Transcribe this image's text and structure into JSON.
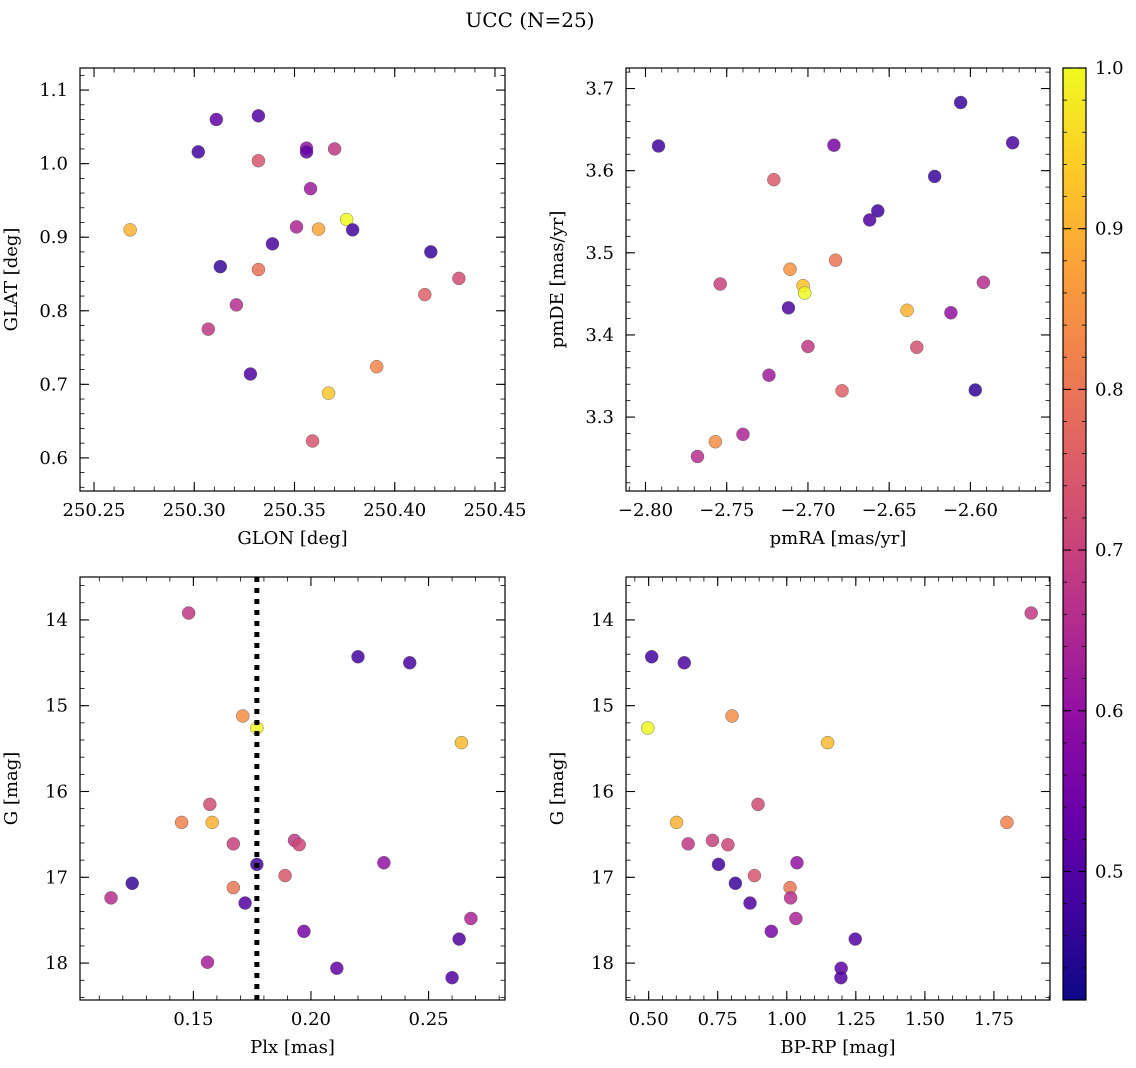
{
  "figure": {
    "title": "UCC (N=25)"
  },
  "colorbar": {
    "colormap": "plasma",
    "range": [
      0.42,
      1.0
    ],
    "ticks": [
      "0.5",
      "0.6",
      "0.7",
      "0.8",
      "0.9",
      "1.0"
    ],
    "tick_values": [
      0.5,
      0.6,
      0.7,
      0.8,
      0.9,
      1.0
    ]
  },
  "chart_data": [
    {
      "type": "scatter",
      "id": "glon-glat",
      "xlabel": "GLON [deg]",
      "ylabel": "GLAT [deg]",
      "xlim": [
        250.243,
        250.455
      ],
      "ylim": [
        0.555,
        1.13
      ],
      "xticks": [
        250.25,
        250.3,
        250.35,
        250.4,
        250.45
      ],
      "xtick_labels": [
        "250.25",
        "250.30",
        "250.35",
        "250.40",
        "250.45"
      ],
      "yticks": [
        0.6,
        0.7,
        0.8,
        0.9,
        1.0,
        1.1
      ],
      "ytick_labels": [
        "0.6",
        "0.7",
        "0.8",
        "0.9",
        "1.0",
        "1.1"
      ],
      "points": [
        {
          "x": 250.268,
          "y": 0.91,
          "c": 0.9
        },
        {
          "x": 250.302,
          "y": 1.016,
          "c": 0.48
        },
        {
          "x": 250.311,
          "y": 1.06,
          "c": 0.52
        },
        {
          "x": 250.313,
          "y": 0.86,
          "c": 0.47
        },
        {
          "x": 250.307,
          "y": 0.775,
          "c": 0.68
        },
        {
          "x": 250.321,
          "y": 0.808,
          "c": 0.66
        },
        {
          "x": 250.328,
          "y": 0.714,
          "c": 0.5
        },
        {
          "x": 250.332,
          "y": 1.065,
          "c": 0.51
        },
        {
          "x": 250.332,
          "y": 1.004,
          "c": 0.74
        },
        {
          "x": 250.332,
          "y": 0.856,
          "c": 0.79
        },
        {
          "x": 250.339,
          "y": 0.891,
          "c": 0.49
        },
        {
          "x": 250.351,
          "y": 0.914,
          "c": 0.64
        },
        {
          "x": 250.356,
          "y": 1.021,
          "c": 0.6
        },
        {
          "x": 250.356,
          "y": 1.016,
          "c": 0.52
        },
        {
          "x": 250.358,
          "y": 0.966,
          "c": 0.62
        },
        {
          "x": 250.359,
          "y": 0.623,
          "c": 0.74
        },
        {
          "x": 250.362,
          "y": 0.911,
          "c": 0.88
        },
        {
          "x": 250.367,
          "y": 0.688,
          "c": 0.93
        },
        {
          "x": 250.37,
          "y": 1.02,
          "c": 0.68
        },
        {
          "x": 250.376,
          "y": 0.924,
          "c": 1.0
        },
        {
          "x": 250.379,
          "y": 0.91,
          "c": 0.48
        },
        {
          "x": 250.391,
          "y": 0.724,
          "c": 0.83
        },
        {
          "x": 250.415,
          "y": 0.822,
          "c": 0.76
        },
        {
          "x": 250.418,
          "y": 0.88,
          "c": 0.47
        },
        {
          "x": 250.432,
          "y": 0.844,
          "c": 0.72
        }
      ]
    },
    {
      "type": "scatter",
      "id": "pmra-pmde",
      "xlabel": "pmRA [mas/yr]",
      "ylabel": "pmDE [mas/yr]",
      "xlim": [
        -2.812,
        -2.551
      ],
      "ylim": [
        3.21,
        3.725
      ],
      "xticks": [
        -2.8,
        -2.75,
        -2.7,
        -2.65,
        -2.6
      ],
      "xtick_labels": [
        "−2.80",
        "−2.75",
        "−2.70",
        "−2.65",
        "−2.60"
      ],
      "yticks": [
        3.3,
        3.4,
        3.5,
        3.6,
        3.7
      ],
      "ytick_labels": [
        "3.3",
        "3.4",
        "3.5",
        "3.6",
        "3.7"
      ],
      "points": [
        {
          "x": -2.792,
          "y": 3.63,
          "c": 0.48
        },
        {
          "x": -2.768,
          "y": 3.252,
          "c": 0.66
        },
        {
          "x": -2.757,
          "y": 3.27,
          "c": 0.84
        },
        {
          "x": -2.754,
          "y": 3.462,
          "c": 0.7
        },
        {
          "x": -2.74,
          "y": 3.279,
          "c": 0.64
        },
        {
          "x": -2.724,
          "y": 3.351,
          "c": 0.62
        },
        {
          "x": -2.721,
          "y": 3.589,
          "c": 0.75
        },
        {
          "x": -2.712,
          "y": 3.433,
          "c": 0.5
        },
        {
          "x": -2.711,
          "y": 3.48,
          "c": 0.85
        },
        {
          "x": -2.703,
          "y": 3.46,
          "c": 0.92
        },
        {
          "x": -2.702,
          "y": 3.451,
          "c": 1.0
        },
        {
          "x": -2.7,
          "y": 3.386,
          "c": 0.68
        },
        {
          "x": -2.684,
          "y": 3.631,
          "c": 0.56
        },
        {
          "x": -2.683,
          "y": 3.491,
          "c": 0.8
        },
        {
          "x": -2.679,
          "y": 3.332,
          "c": 0.76
        },
        {
          "x": -2.662,
          "y": 3.54,
          "c": 0.5
        },
        {
          "x": -2.657,
          "y": 3.551,
          "c": 0.48
        },
        {
          "x": -2.639,
          "y": 3.43,
          "c": 0.9
        },
        {
          "x": -2.633,
          "y": 3.385,
          "c": 0.73
        },
        {
          "x": -2.622,
          "y": 3.593,
          "c": 0.47
        },
        {
          "x": -2.612,
          "y": 3.427,
          "c": 0.6
        },
        {
          "x": -2.606,
          "y": 3.683,
          "c": 0.47
        },
        {
          "x": -2.597,
          "y": 3.333,
          "c": 0.46
        },
        {
          "x": -2.592,
          "y": 3.464,
          "c": 0.66
        },
        {
          "x": -2.574,
          "y": 3.634,
          "c": 0.49
        }
      ]
    },
    {
      "type": "scatter",
      "id": "plx-g",
      "xlabel": "Plx [mas]",
      "ylabel": "G [mag]",
      "xlim": [
        0.1018,
        0.2825
      ],
      "ylim": [
        18.43,
        13.5
      ],
      "y_inverted": true,
      "xticks": [
        0.15,
        0.2,
        0.25
      ],
      "xtick_labels": [
        "0.15",
        "0.20",
        "0.25"
      ],
      "yticks": [
        14,
        15,
        16,
        17,
        18
      ],
      "ytick_labels": [
        "14",
        "15",
        "16",
        "17",
        "18"
      ],
      "vline": {
        "x": 0.177,
        "style": "dotted"
      },
      "points": [
        {
          "x": 0.148,
          "y": 13.92,
          "c": 0.68
        },
        {
          "x": 0.22,
          "y": 14.43,
          "c": 0.48
        },
        {
          "x": 0.242,
          "y": 14.5,
          "c": 0.49
        },
        {
          "x": 0.171,
          "y": 15.12,
          "c": 0.84
        },
        {
          "x": 0.177,
          "y": 15.26,
          "c": 1.0
        },
        {
          "x": 0.264,
          "y": 15.43,
          "c": 0.91
        },
        {
          "x": 0.157,
          "y": 16.15,
          "c": 0.72
        },
        {
          "x": 0.145,
          "y": 16.36,
          "c": 0.82
        },
        {
          "x": 0.158,
          "y": 16.36,
          "c": 0.9
        },
        {
          "x": 0.167,
          "y": 16.61,
          "c": 0.7
        },
        {
          "x": 0.193,
          "y": 16.57,
          "c": 0.68
        },
        {
          "x": 0.195,
          "y": 16.62,
          "c": 0.71
        },
        {
          "x": 0.231,
          "y": 16.83,
          "c": 0.6
        },
        {
          "x": 0.177,
          "y": 16.85,
          "c": 0.48
        },
        {
          "x": 0.189,
          "y": 16.98,
          "c": 0.74
        },
        {
          "x": 0.124,
          "y": 17.07,
          "c": 0.47
        },
        {
          "x": 0.167,
          "y": 17.12,
          "c": 0.8
        },
        {
          "x": 0.115,
          "y": 17.24,
          "c": 0.66
        },
        {
          "x": 0.172,
          "y": 17.3,
          "c": 0.5
        },
        {
          "x": 0.268,
          "y": 17.48,
          "c": 0.64
        },
        {
          "x": 0.197,
          "y": 17.63,
          "c": 0.56
        },
        {
          "x": 0.263,
          "y": 17.72,
          "c": 0.5
        },
        {
          "x": 0.156,
          "y": 17.99,
          "c": 0.63
        },
        {
          "x": 0.211,
          "y": 18.06,
          "c": 0.52
        },
        {
          "x": 0.26,
          "y": 18.17,
          "c": 0.5
        }
      ]
    },
    {
      "type": "scatter",
      "id": "bprp-g",
      "xlabel": "BP-RP [mag]",
      "ylabel": "G [mag]",
      "xlim": [
        0.418,
        1.953
      ],
      "ylim": [
        18.43,
        13.5
      ],
      "y_inverted": true,
      "xticks": [
        0.5,
        0.75,
        1.0,
        1.25,
        1.5,
        1.75
      ],
      "xtick_labels": [
        "0.50",
        "0.75",
        "1.00",
        "1.25",
        "1.50",
        "1.75"
      ],
      "yticks": [
        14,
        15,
        16,
        17,
        18
      ],
      "ytick_labels": [
        "14",
        "15",
        "16",
        "17",
        "18"
      ],
      "points": [
        {
          "x": 1.885,
          "y": 13.92,
          "c": 0.68
        },
        {
          "x": 0.511,
          "y": 14.43,
          "c": 0.48
        },
        {
          "x": 0.629,
          "y": 14.5,
          "c": 0.49
        },
        {
          "x": 0.802,
          "y": 15.12,
          "c": 0.84
        },
        {
          "x": 0.497,
          "y": 15.26,
          "c": 1.0
        },
        {
          "x": 1.148,
          "y": 15.43,
          "c": 0.91
        },
        {
          "x": 0.896,
          "y": 16.15,
          "c": 0.72
        },
        {
          "x": 1.797,
          "y": 16.36,
          "c": 0.82
        },
        {
          "x": 0.601,
          "y": 16.36,
          "c": 0.9
        },
        {
          "x": 0.731,
          "y": 16.57,
          "c": 0.7
        },
        {
          "x": 0.787,
          "y": 16.62,
          "c": 0.71
        },
        {
          "x": 0.643,
          "y": 16.61,
          "c": 0.68
        },
        {
          "x": 1.037,
          "y": 16.83,
          "c": 0.6
        },
        {
          "x": 0.753,
          "y": 16.85,
          "c": 0.48
        },
        {
          "x": 0.883,
          "y": 16.98,
          "c": 0.74
        },
        {
          "x": 0.814,
          "y": 17.07,
          "c": 0.47
        },
        {
          "x": 1.012,
          "y": 17.12,
          "c": 0.8
        },
        {
          "x": 1.014,
          "y": 17.24,
          "c": 0.66
        },
        {
          "x": 0.867,
          "y": 17.3,
          "c": 0.5
        },
        {
          "x": 1.033,
          "y": 17.48,
          "c": 0.64
        },
        {
          "x": 0.944,
          "y": 17.63,
          "c": 0.56
        },
        {
          "x": 1.248,
          "y": 17.72,
          "c": 0.5
        },
        {
          "x": 1.197,
          "y": 18.06,
          "c": 0.52
        },
        {
          "x": 1.196,
          "y": 18.17,
          "c": 0.5
        }
      ]
    }
  ]
}
